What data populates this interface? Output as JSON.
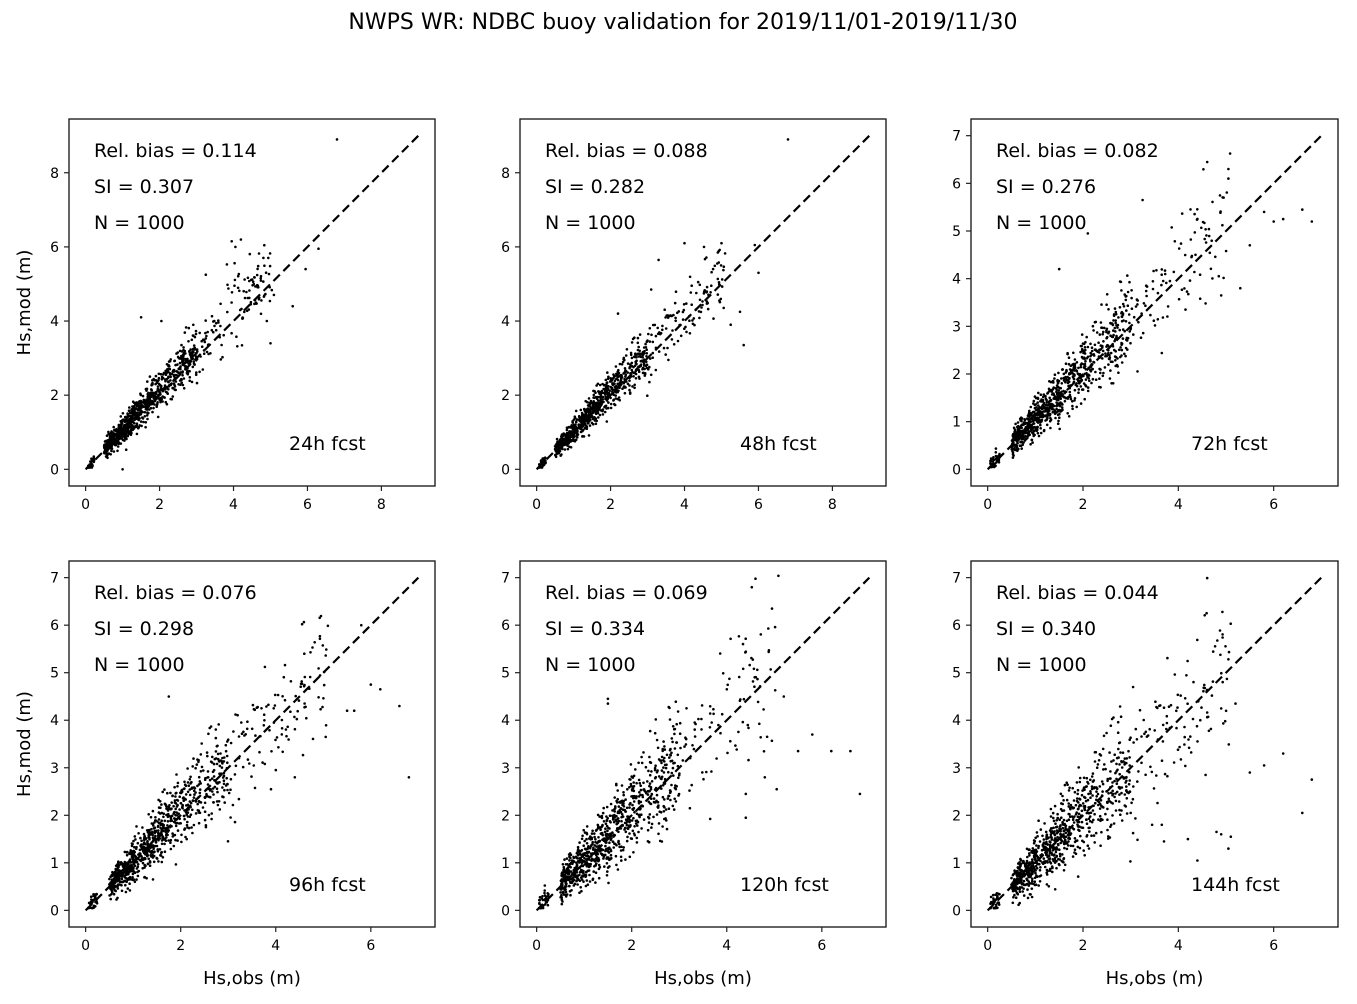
{
  "chart_data": {
    "type": "scatter",
    "title": "NWPS WR: NDBC buoy validation for 2019/11/01-2019/11/30",
    "panels": [
      {
        "id": "24h",
        "forecast_label": "24h fcst",
        "rel_bias_text": "Rel. bias =  0.114",
        "si_text": "SI =  0.307",
        "n_text": "N = 1000",
        "rel_bias": 0.114,
        "si": 0.307,
        "n": 1000,
        "xlabel": "",
        "ylabel": "Hs,mod (m)",
        "xlim": [
          -0.45,
          9.45
        ],
        "ylim": [
          -0.45,
          9.45
        ],
        "xticks": [
          0,
          2,
          4,
          6,
          8
        ],
        "yticks": [
          0,
          2,
          4,
          6,
          8
        ],
        "one_to_one": [
          0,
          9
        ],
        "spread": 0.17,
        "outliers": [
          [
            6.8,
            8.9
          ],
          [
            3.95,
            6.15
          ],
          [
            4.05,
            6.0
          ],
          [
            4.2,
            6.2
          ],
          [
            5.95,
            5.4
          ],
          [
            5.6,
            4.4
          ],
          [
            5.0,
            3.4
          ],
          [
            4.9,
            4.0
          ],
          [
            3.25,
            5.25
          ],
          [
            2.05,
            4.0
          ],
          [
            1.5,
            4.1
          ],
          [
            1.0,
            0.0
          ],
          [
            6.3,
            5.95
          ]
        ]
      },
      {
        "id": "48h",
        "forecast_label": "48h fcst",
        "rel_bias_text": "Rel. bias =  0.088",
        "si_text": "SI =  0.282",
        "n_text": "N = 1000",
        "rel_bias": 0.088,
        "si": 0.282,
        "n": 1000,
        "xlabel": "",
        "ylabel": "",
        "xlim": [
          -0.45,
          9.45
        ],
        "ylim": [
          -0.45,
          9.45
        ],
        "xticks": [
          0,
          2,
          4,
          6,
          8
        ],
        "yticks": [
          0,
          2,
          4,
          6,
          8
        ],
        "one_to_one": [
          0,
          9
        ],
        "spread": 0.16,
        "outliers": [
          [
            6.8,
            8.9
          ],
          [
            4.0,
            6.1
          ],
          [
            5.9,
            6.05
          ],
          [
            6.0,
            5.3
          ],
          [
            3.3,
            5.65
          ],
          [
            5.6,
            3.35
          ],
          [
            5.5,
            4.25
          ],
          [
            2.2,
            4.2
          ],
          [
            4.9,
            5.85
          ],
          [
            5.0,
            6.1
          ],
          [
            3.1,
            4.85
          ],
          [
            5.25,
            3.9
          ]
        ]
      },
      {
        "id": "72h",
        "forecast_label": "72h fcst",
        "rel_bias_text": "Rel. bias =  0.082",
        "si_text": "SI =  0.276",
        "n_text": "N = 1000",
        "rel_bias": 0.082,
        "si": 0.276,
        "n": 1000,
        "xlabel": "",
        "ylabel": "",
        "xlim": [
          -0.35,
          7.35
        ],
        "ylim": [
          -0.35,
          7.35
        ],
        "xticks": [
          0,
          2,
          4,
          6
        ],
        "yticks": [
          0,
          1,
          2,
          3,
          4,
          5,
          6,
          7
        ],
        "one_to_one": [
          0,
          7
        ],
        "spread": 0.2,
        "outliers": [
          [
            5.05,
            6.3
          ],
          [
            5.05,
            6.1
          ],
          [
            3.25,
            5.65
          ],
          [
            4.95,
            5.7
          ],
          [
            6.6,
            5.45
          ],
          [
            6.8,
            5.2
          ],
          [
            5.8,
            5.4
          ],
          [
            6.0,
            5.2
          ],
          [
            6.2,
            5.25
          ],
          [
            5.5,
            4.7
          ],
          [
            2.1,
            4.95
          ],
          [
            4.15,
            3.35
          ],
          [
            4.9,
            3.65
          ],
          [
            5.3,
            3.8
          ],
          [
            1.5,
            4.2
          ]
        ]
      },
      {
        "id": "96h",
        "forecast_label": "96h fcst",
        "rel_bias_text": "Rel. bias =  0.076",
        "si_text": "SI =  0.298",
        "n_text": "N = 1000",
        "rel_bias": 0.076,
        "si": 0.298,
        "n": 1000,
        "xlabel": "Hs,obs (m)",
        "ylabel": "Hs,mod (m)",
        "xlim": [
          -0.35,
          7.35
        ],
        "ylim": [
          -0.35,
          7.35
        ],
        "xticks": [
          0,
          2,
          4,
          6
        ],
        "yticks": [
          0,
          1,
          2,
          3,
          4,
          5,
          6,
          7
        ],
        "one_to_one": [
          0,
          7
        ],
        "spread": 0.23,
        "outliers": [
          [
            6.8,
            2.8
          ],
          [
            6.6,
            4.3
          ],
          [
            6.0,
            4.75
          ],
          [
            6.2,
            4.65
          ],
          [
            5.8,
            6.0
          ],
          [
            4.6,
            5.4
          ],
          [
            5.5,
            4.2
          ],
          [
            5.65,
            4.2
          ],
          [
            1.75,
            4.5
          ],
          [
            4.4,
            2.8
          ],
          [
            3.9,
            2.55
          ],
          [
            4.0,
            2.95
          ],
          [
            5.05,
            3.65
          ]
        ]
      },
      {
        "id": "120h",
        "forecast_label": "120h fcst",
        "rel_bias_text": "Rel. bias =  0.069",
        "si_text": "SI =  0.334",
        "n_text": "N = 1000",
        "rel_bias": 0.069,
        "si": 0.334,
        "n": 1000,
        "xlabel": "Hs,obs (m)",
        "ylabel": "",
        "xlim": [
          -0.35,
          7.35
        ],
        "ylim": [
          -0.35,
          7.35
        ],
        "xticks": [
          0,
          2,
          4,
          6
        ],
        "yticks": [
          0,
          1,
          2,
          3,
          4,
          5,
          6,
          7
        ],
        "one_to_one": [
          0,
          7
        ],
        "spread": 0.27,
        "outliers": [
          [
            6.8,
            2.45
          ],
          [
            6.6,
            3.35
          ],
          [
            6.2,
            3.35
          ],
          [
            5.8,
            3.7
          ],
          [
            5.5,
            3.35
          ],
          [
            4.4,
            1.95
          ],
          [
            4.4,
            2.45
          ],
          [
            5.2,
            4.5
          ],
          [
            1.5,
            4.45
          ],
          [
            1.5,
            4.35
          ],
          [
            5.05,
            2.55
          ],
          [
            4.8,
            2.8
          ],
          [
            4.0,
            4.65
          ]
        ]
      },
      {
        "id": "144h",
        "forecast_label": "144h fcst",
        "rel_bias_text": "Rel. bias =  0.044",
        "si_text": "SI =  0.340",
        "n_text": "N = 1000",
        "rel_bias": 0.044,
        "si": 0.34,
        "n": 1000,
        "xlabel": "Hs,obs (m)",
        "ylabel": "",
        "xlim": [
          -0.35,
          7.35
        ],
        "ylim": [
          -0.35,
          7.35
        ],
        "xticks": [
          0,
          2,
          4,
          6
        ],
        "yticks": [
          0,
          1,
          2,
          3,
          4,
          5,
          6,
          7
        ],
        "one_to_one": [
          0,
          7
        ],
        "spread": 0.28,
        "outliers": [
          [
            6.8,
            2.75
          ],
          [
            6.6,
            2.05
          ],
          [
            6.2,
            3.3
          ],
          [
            5.8,
            3.05
          ],
          [
            5.5,
            2.9
          ],
          [
            5.2,
            4.35
          ],
          [
            4.4,
            1.05
          ],
          [
            4.2,
            1.5
          ],
          [
            3.7,
            1.45
          ],
          [
            4.8,
            1.65
          ],
          [
            4.9,
            1.6
          ],
          [
            5.05,
            1.3
          ],
          [
            5.1,
            1.55
          ],
          [
            3.05,
            4.7
          ],
          [
            3.45,
            1.8
          ],
          [
            3.0,
            2.05
          ]
        ]
      }
    ]
  }
}
